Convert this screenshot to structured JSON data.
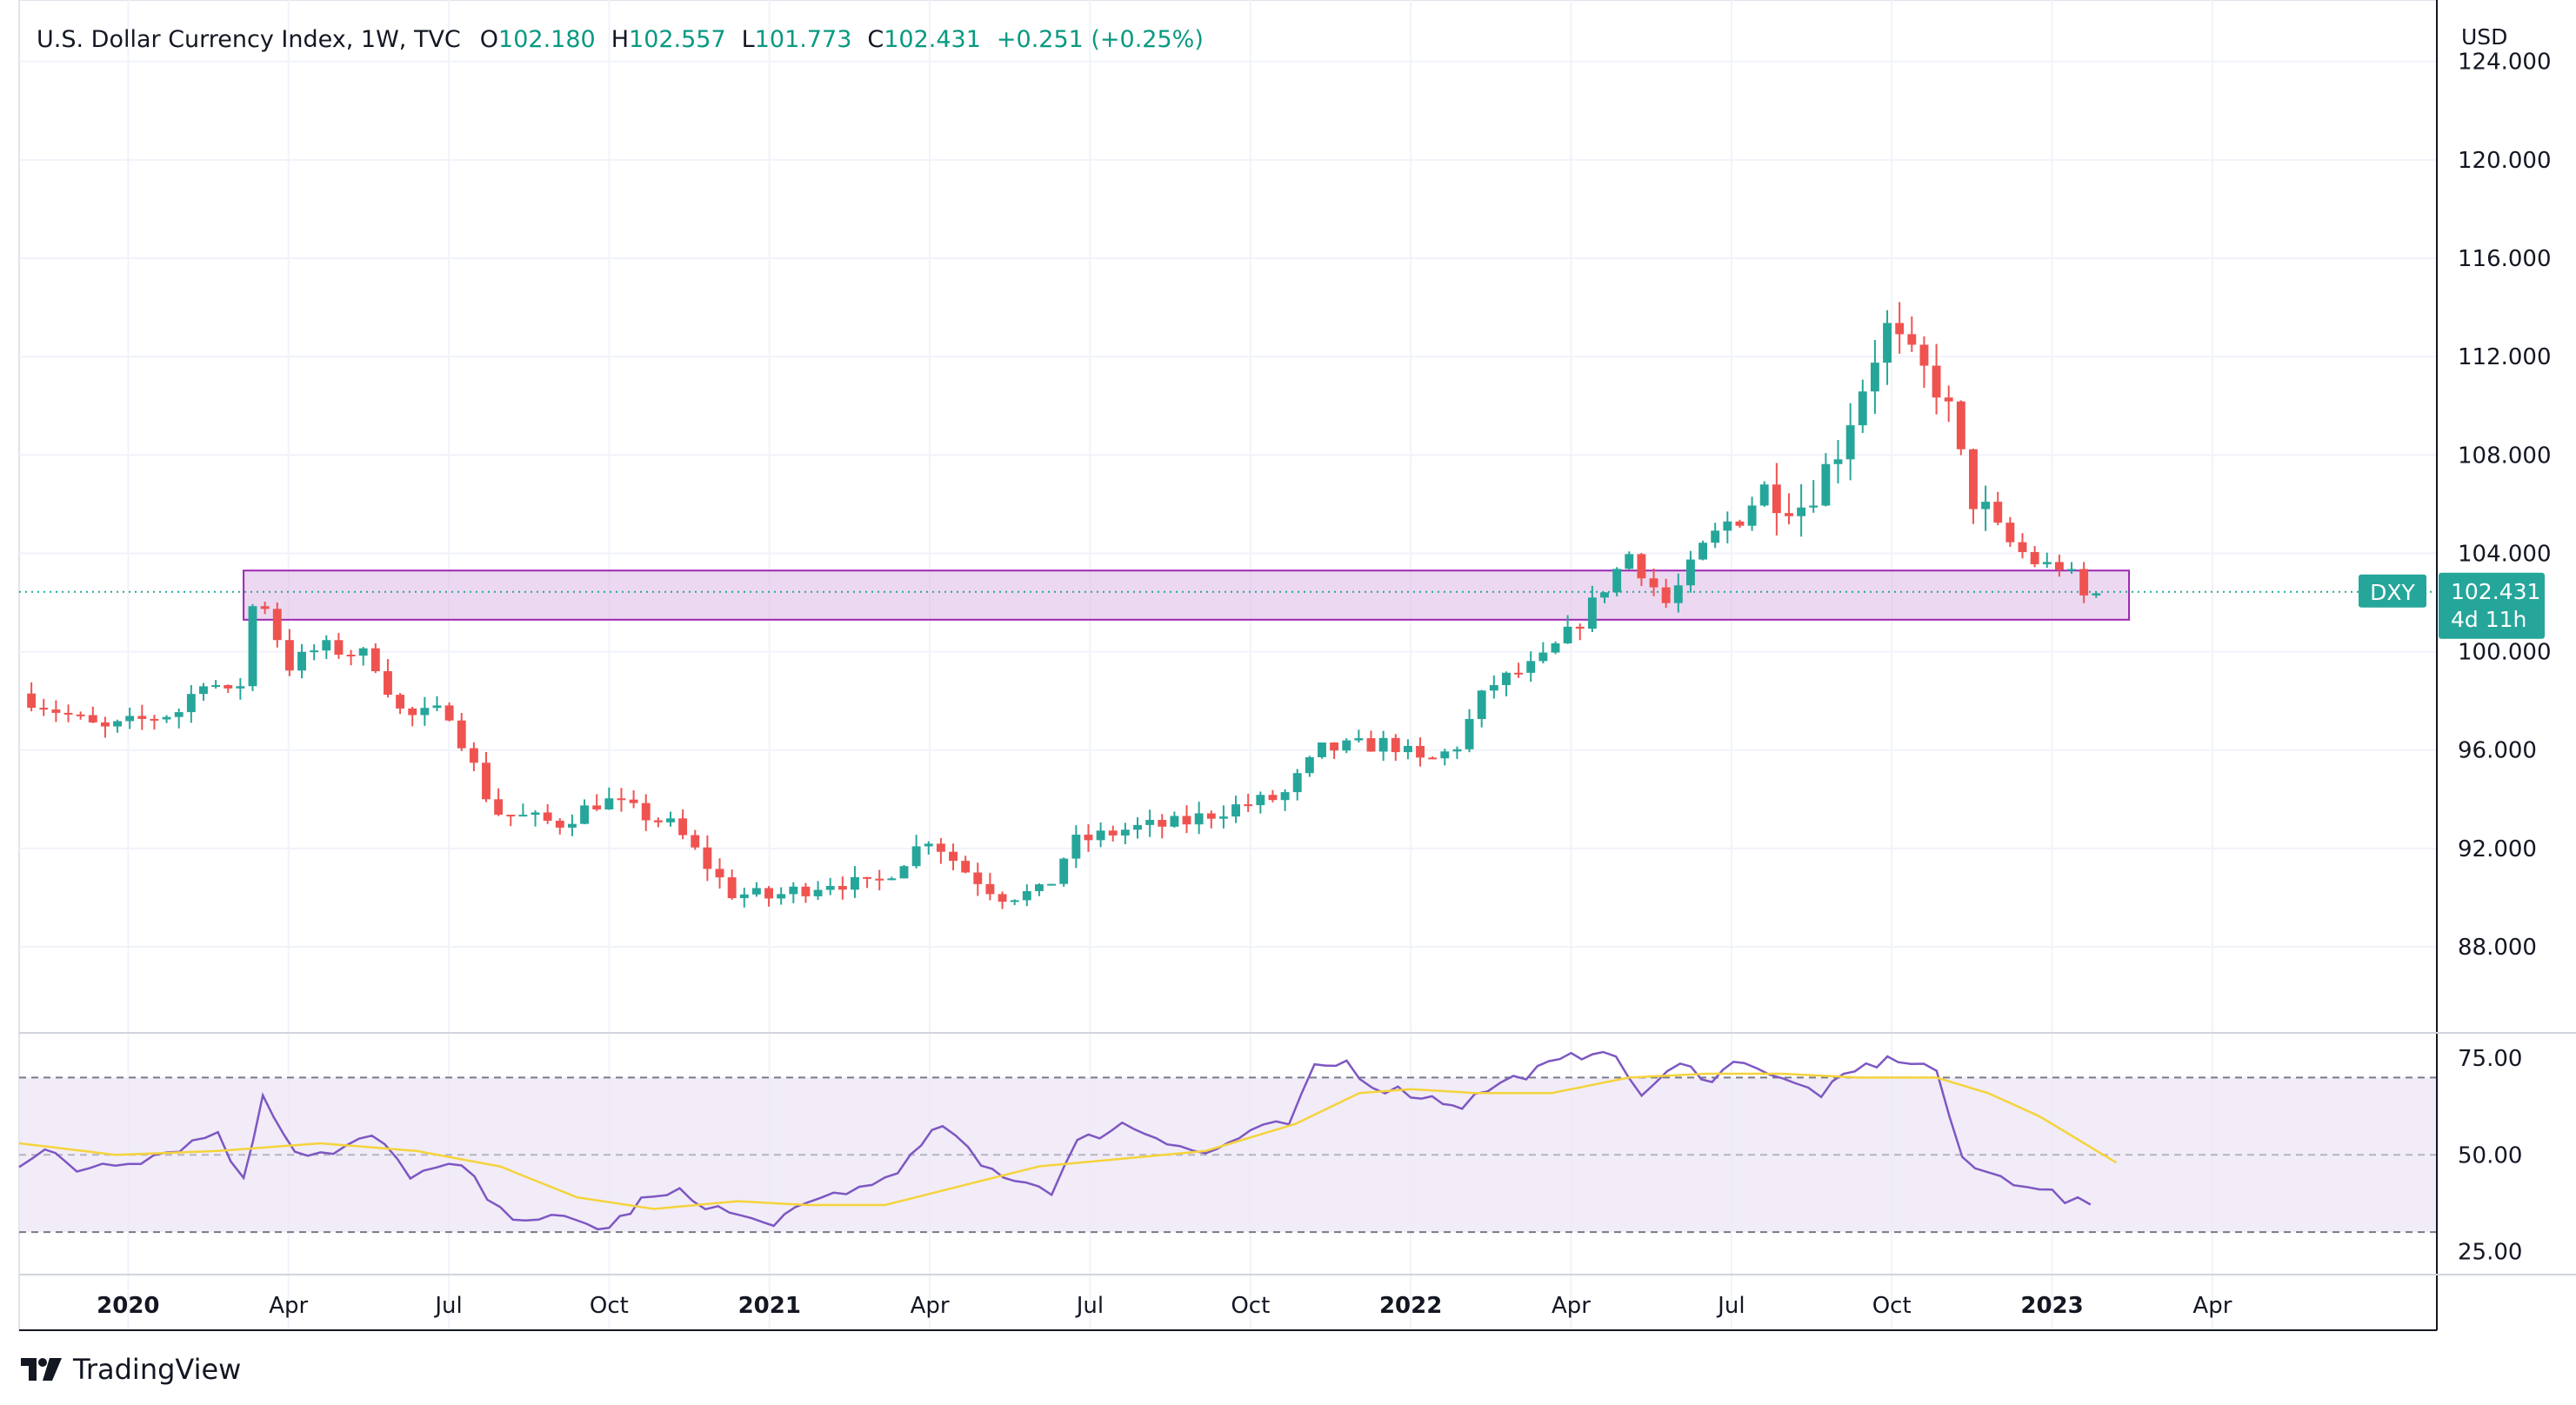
{
  "header": {
    "symbol_line": "U.S. Dollar Currency Index, 1W, TVC",
    "open_label": "O",
    "open": "102.180",
    "high_label": "H",
    "high": "102.557",
    "low_label": "L",
    "low": "101.773",
    "close_label": "C",
    "close": "102.431",
    "change": "+0.251 (+0.25%)"
  },
  "currency": "USD",
  "brand": "TradingView",
  "price_tag": {
    "symbol": "DXY",
    "price": "102.431",
    "countdown": "4d 11h"
  },
  "colors": {
    "up": "#26a69a",
    "down": "#ef5350",
    "rsi": "#7e57c2",
    "rsi_ma": "#f5d33c",
    "zone": "#9c27b0",
    "tag": "#26a69a"
  },
  "chart_data": [
    {
      "type": "candlestick",
      "title": "U.S. Dollar Currency Index, 1W, TVC",
      "x_ticks": [
        "2020",
        "Apr",
        "Jul",
        "Oct",
        "2021",
        "Apr",
        "Jul",
        "Oct",
        "2022",
        "Apr",
        "Jul",
        "Oct",
        "2023",
        "Apr"
      ],
      "y_ticks": [
        "124.000",
        "120.000",
        "116.000",
        "112.000",
        "108.000",
        "104.000",
        "100.000",
        "96.000",
        "92.000",
        "88.000"
      ],
      "ylim": [
        84.5,
        126.5
      ],
      "xlim": [
        2019.83,
        2023.6
      ],
      "grid": true,
      "last_price": 102.431,
      "zone": {
        "x_start": 2020.18,
        "x_end": 2023.12,
        "y_low": 101.3,
        "y_high": 103.3
      },
      "anchors": [
        [
          2019.83,
          98.3
        ],
        [
          2019.96,
          96.8
        ],
        [
          2020.08,
          97.6
        ],
        [
          2020.12,
          99.0
        ],
        [
          2020.17,
          97.9
        ],
        [
          2020.2,
          102.8
        ],
        [
          2020.25,
          99.4
        ],
        [
          2020.3,
          100.2
        ],
        [
          2020.38,
          99.8
        ],
        [
          2020.43,
          97.3
        ],
        [
          2020.5,
          97.6
        ],
        [
          2020.57,
          93.5
        ],
        [
          2020.67,
          93.0
        ],
        [
          2020.74,
          94.0
        ],
        [
          2020.85,
          92.9
        ],
        [
          2020.94,
          90.2
        ],
        [
          2021.0,
          90.0
        ],
        [
          2021.1,
          90.7
        ],
        [
          2021.16,
          90.4
        ],
        [
          2021.25,
          92.5
        ],
        [
          2021.3,
          91.2
        ],
        [
          2021.36,
          90.1
        ],
        [
          2021.43,
          90.2
        ],
        [
          2021.47,
          92.2
        ],
        [
          2021.56,
          92.8
        ],
        [
          2021.64,
          93.0
        ],
        [
          2021.71,
          93.6
        ],
        [
          2021.8,
          94.1
        ],
        [
          2021.86,
          96.0
        ],
        [
          2021.97,
          96.3
        ],
        [
          2022.02,
          95.4
        ],
        [
          2022.07,
          96.1
        ],
        [
          2022.12,
          98.6
        ],
        [
          2022.2,
          99.5
        ],
        [
          2022.26,
          101.1
        ],
        [
          2022.34,
          104.0
        ],
        [
          2022.4,
          101.9
        ],
        [
          2022.46,
          104.4
        ],
        [
          2022.55,
          106.6
        ],
        [
          2022.61,
          106.0
        ],
        [
          2022.66,
          107.9
        ],
        [
          2022.74,
          113.2
        ],
        [
          2022.78,
          111.8
        ],
        [
          2022.83,
          110.6
        ],
        [
          2022.87,
          106.5
        ],
        [
          2022.93,
          104.5
        ],
        [
          2022.98,
          103.5
        ],
        [
          2023.02,
          103.5
        ],
        [
          2023.05,
          102.2
        ],
        [
          2023.085,
          102.43
        ]
      ],
      "rsi": {
        "ylim": [
          19,
          80
        ],
        "y_ticks": [
          "75.00",
          "50.00",
          "25.00"
        ],
        "levels": {
          "upper": 70,
          "middle": 50,
          "lower": 30
        },
        "values": [
          [
            2019.83,
            48
          ],
          [
            2019.87,
            51
          ],
          [
            2019.92,
            46
          ],
          [
            2019.96,
            48
          ],
          [
            2020.02,
            49
          ],
          [
            2020.08,
            52
          ],
          [
            2020.14,
            56
          ],
          [
            2020.18,
            43
          ],
          [
            2020.21,
            66
          ],
          [
            2020.26,
            51
          ],
          [
            2020.32,
            50
          ],
          [
            2020.38,
            55
          ],
          [
            2020.44,
            45
          ],
          [
            2020.52,
            47
          ],
          [
            2020.58,
            35
          ],
          [
            2020.68,
            33
          ],
          [
            2020.75,
            31
          ],
          [
            2020.8,
            38
          ],
          [
            2020.86,
            40
          ],
          [
            2020.92,
            36
          ],
          [
            2020.99,
            32
          ],
          [
            2021.04,
            35
          ],
          [
            2021.1,
            40
          ],
          [
            2021.16,
            42
          ],
          [
            2021.22,
            49
          ],
          [
            2021.27,
            58
          ],
          [
            2021.33,
            47
          ],
          [
            2021.4,
            43
          ],
          [
            2021.44,
            41
          ],
          [
            2021.48,
            53
          ],
          [
            2021.55,
            58
          ],
          [
            2021.62,
            54
          ],
          [
            2021.68,
            50
          ],
          [
            2021.75,
            56
          ],
          [
            2021.81,
            58
          ],
          [
            2021.85,
            72
          ],
          [
            2021.9,
            74
          ],
          [
            2021.94,
            68
          ],
          [
            2022.0,
            66
          ],
          [
            2022.05,
            64
          ],
          [
            2022.08,
            63
          ],
          [
            2022.12,
            67
          ],
          [
            2022.18,
            71
          ],
          [
            2022.25,
            75
          ],
          [
            2022.3,
            78
          ],
          [
            2022.36,
            66
          ],
          [
            2022.42,
            73
          ],
          [
            2022.47,
            70
          ],
          [
            2022.52,
            75
          ],
          [
            2022.58,
            69
          ],
          [
            2022.64,
            66
          ],
          [
            2022.71,
            73
          ],
          [
            2022.76,
            75
          ],
          [
            2022.82,
            72
          ],
          [
            2022.86,
            48
          ],
          [
            2022.92,
            44
          ],
          [
            2022.98,
            42
          ],
          [
            2023.02,
            38
          ],
          [
            2023.06,
            37
          ]
        ],
        "ma": [
          [
            2019.83,
            53
          ],
          [
            2019.98,
            50
          ],
          [
            2020.14,
            51
          ],
          [
            2020.3,
            53
          ],
          [
            2020.45,
            51
          ],
          [
            2020.58,
            47
          ],
          [
            2020.7,
            39
          ],
          [
            2020.82,
            36
          ],
          [
            2020.95,
            38
          ],
          [
            2021.06,
            37
          ],
          [
            2021.18,
            37
          ],
          [
            2021.3,
            42
          ],
          [
            2021.42,
            47
          ],
          [
            2021.55,
            49
          ],
          [
            2021.68,
            51
          ],
          [
            2021.82,
            58
          ],
          [
            2021.92,
            66
          ],
          [
            2022.0,
            67
          ],
          [
            2022.1,
            66
          ],
          [
            2022.22,
            66
          ],
          [
            2022.34,
            70
          ],
          [
            2022.46,
            71
          ],
          [
            2022.58,
            71
          ],
          [
            2022.7,
            70
          ],
          [
            2022.82,
            70
          ],
          [
            2022.9,
            66
          ],
          [
            2022.98,
            60
          ],
          [
            2023.06,
            52
          ],
          [
            2023.1,
            48
          ]
        ]
      }
    }
  ]
}
